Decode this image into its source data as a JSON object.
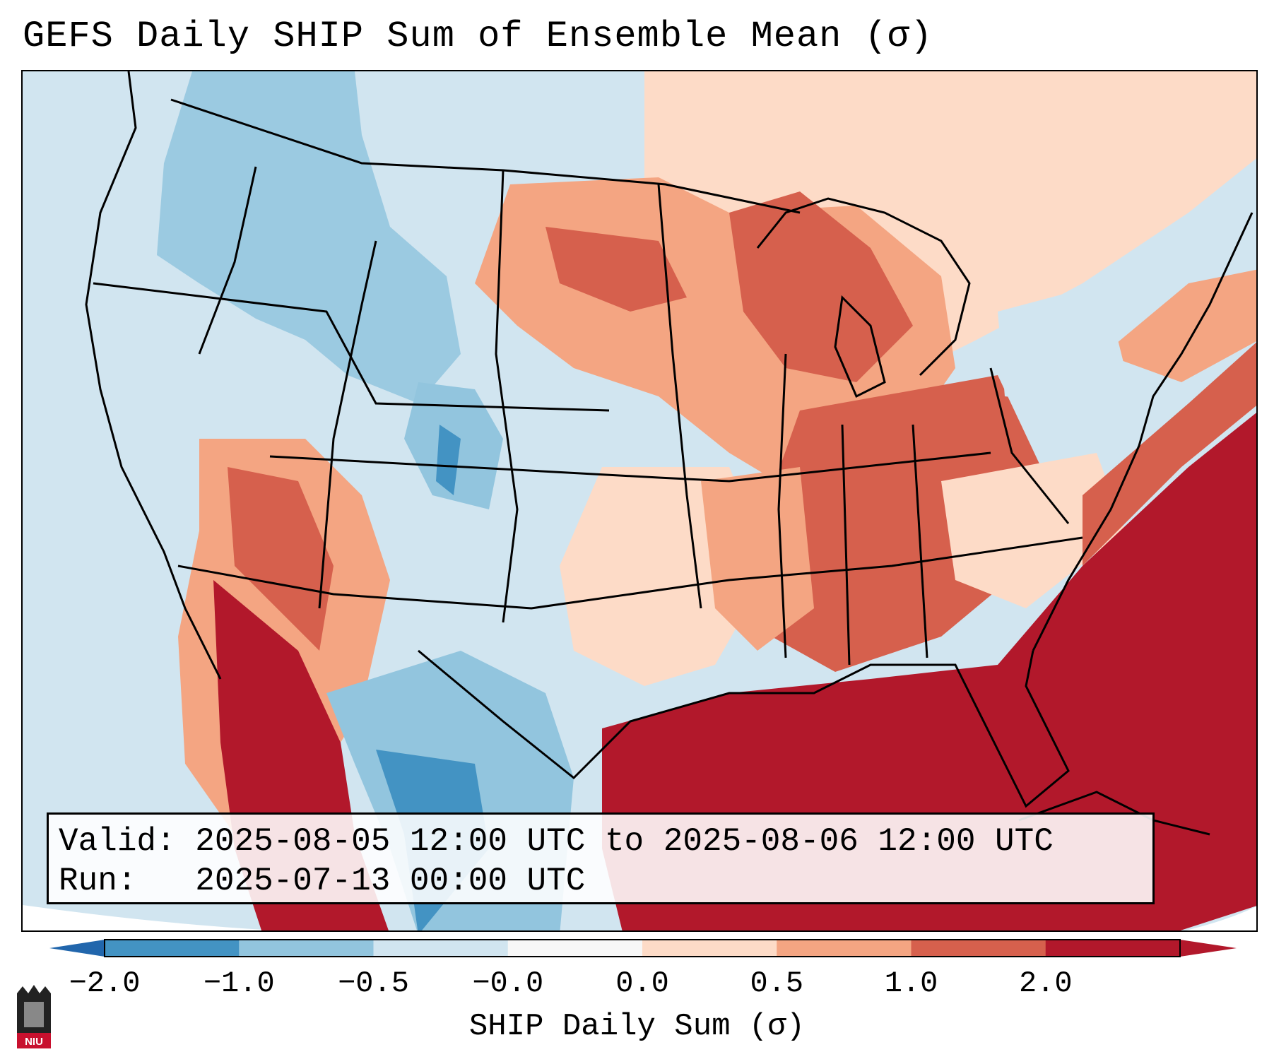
{
  "title": "GEFS Daily SHIP Sum of Ensemble Mean (σ)",
  "info": {
    "valid_label": "Valid:",
    "valid_value": "2025-08-05 12:00 UTC to 2025-08-06 12:00 UTC",
    "run_label": "Run:",
    "run_value": "2025-07-13 00:00 UTC"
  },
  "colorbar": {
    "label": "SHIP Daily Sum (σ)",
    "ticks": [
      "−2.0",
      "−1.0",
      "−0.5",
      "−0.0",
      "0.0",
      "0.5",
      "1.0",
      "2.0"
    ],
    "colors": [
      "#4393c3",
      "#92c5de",
      "#d1e5f0",
      "#f7f7f7",
      "#fddbc7",
      "#f4a582",
      "#d6604d",
      "#b2182b"
    ],
    "extend_low_color": "#2166ac",
    "extend_high_color": "#b2182b"
  },
  "logo": {
    "text": "NIU",
    "color": "#c8102e"
  }
}
